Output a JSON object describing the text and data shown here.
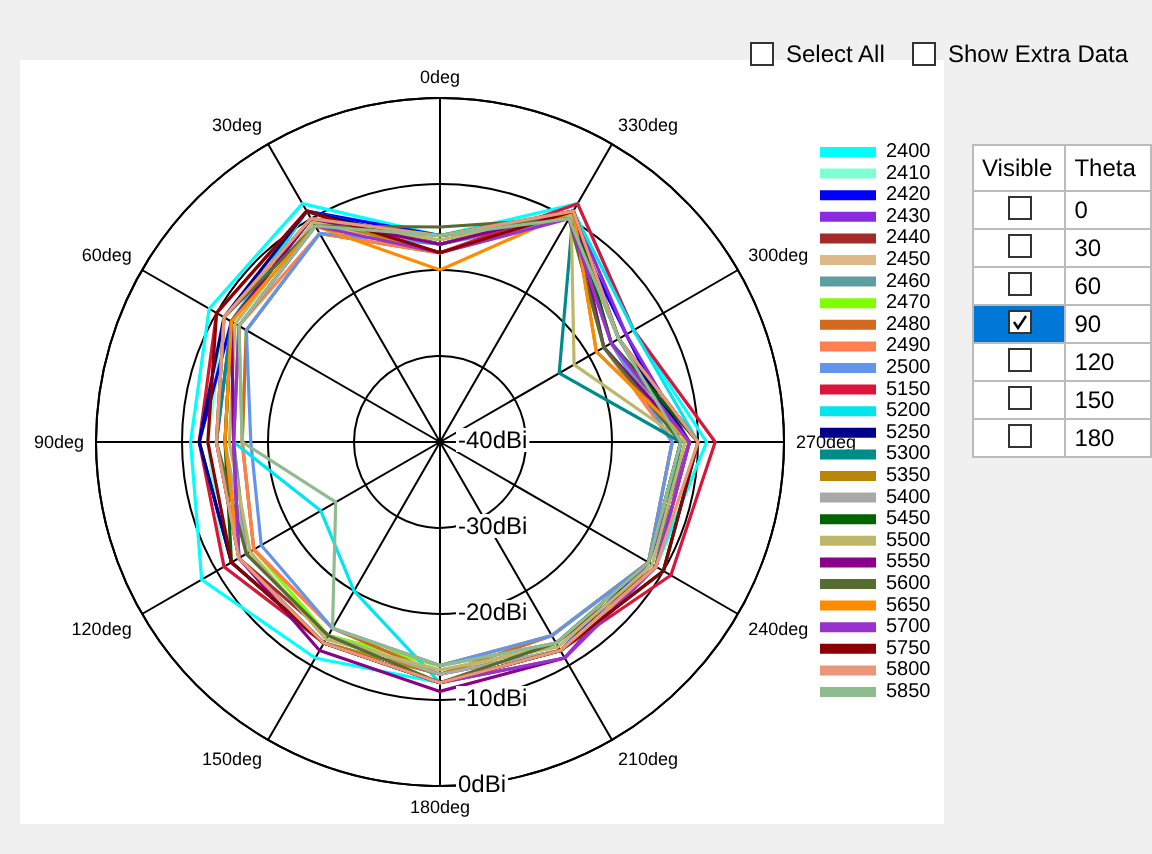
{
  "chart_data": {
    "type": "radar",
    "categories": [
      "0deg",
      "330deg",
      "300deg",
      "270deg",
      "240deg",
      "210deg",
      "180deg",
      "150deg",
      "120deg",
      "90deg",
      "60deg",
      "30deg"
    ],
    "ylim": [
      -40,
      0
    ],
    "yticks": [
      {
        "value": -40,
        "label": "-40dBi"
      },
      {
        "value": -30,
        "label": "-30dBi"
      },
      {
        "value": -20,
        "label": "-20dBi"
      },
      {
        "value": -10,
        "label": "-10dBi"
      },
      {
        "value": 0,
        "label": "0dBi"
      }
    ],
    "grid": true,
    "legend": "right",
    "annotations": [
      "Select All",
      "Show Extra Data",
      "Visible",
      "Theta",
      "0",
      "30",
      "60",
      "90",
      "120",
      "150",
      "180"
    ],
    "series": [
      {
        "name": "2400",
        "color": "#00ffff",
        "values": [
          -16,
          -8,
          -14,
          -9,
          -11,
          -12,
          -12,
          -11,
          -8,
          -11,
          -9,
          -8
        ]
      },
      {
        "name": "2410",
        "color": "#7fffd4",
        "values": [
          -17,
          -9,
          -16,
          -11,
          -11,
          -13,
          -13,
          -13,
          -11,
          -13,
          -11,
          -9
        ]
      },
      {
        "name": "2420",
        "color": "#0000ff",
        "values": [
          -16,
          -10,
          -15,
          -12,
          -12,
          -12,
          -12,
          -13,
          -12,
          -12,
          -12,
          -9
        ]
      },
      {
        "name": "2430",
        "color": "#8a2be2",
        "values": [
          -17,
          -9,
          -15,
          -11,
          -12,
          -11,
          -12,
          -13,
          -13,
          -14,
          -12,
          -10
        ]
      },
      {
        "name": "2440",
        "color": "#a52a2a",
        "values": [
          -16,
          -10,
          -16,
          -12,
          -11,
          -13,
          -13,
          -14,
          -13,
          -15,
          -12,
          -10
        ]
      },
      {
        "name": "2450",
        "color": "#deb887",
        "values": [
          -17,
          -9,
          -16,
          -12,
          -12,
          -13,
          -13,
          -14,
          -14,
          -16,
          -13,
          -11
        ]
      },
      {
        "name": "2460",
        "color": "#5f9ea0",
        "values": [
          -16,
          -10,
          -17,
          -12,
          -12,
          -13,
          -14,
          -14,
          -14,
          -16,
          -13,
          -11
        ]
      },
      {
        "name": "2470",
        "color": "#7fff00",
        "values": [
          -18,
          -9,
          -17,
          -13,
          -12,
          -14,
          -14,
          -14,
          -15,
          -17,
          -14,
          -12
        ]
      },
      {
        "name": "2480",
        "color": "#d2691e",
        "values": [
          -18,
          -9,
          -17,
          -13,
          -12,
          -14,
          -13,
          -15,
          -15,
          -17,
          -14,
          -12
        ]
      },
      {
        "name": "2490",
        "color": "#ff7f50",
        "values": [
          -18,
          -10,
          -18,
          -13,
          -12,
          -14,
          -14,
          -15,
          -15,
          -17,
          -13,
          -12
        ]
      },
      {
        "name": "2500",
        "color": "#6495ed",
        "values": [
          -17,
          -10,
          -17,
          -13,
          -12,
          -14,
          -14,
          -15,
          -16,
          -18,
          -14,
          -12
        ]
      },
      {
        "name": "5150",
        "color": "#dc143c",
        "values": [
          -18,
          -8,
          -14,
          -8,
          -9,
          -12,
          -12,
          -13,
          -11,
          -12,
          -10,
          -9
        ]
      },
      {
        "name": "5200",
        "color": "#00e5ee",
        "values": [
          -17,
          -9,
          -14,
          -10,
          -10,
          -12,
          -12,
          -20,
          -24,
          -16,
          -12,
          -9
        ]
      },
      {
        "name": "5250",
        "color": "#00008b",
        "values": [
          -17,
          -9,
          -16,
          -11,
          -11,
          -12,
          -12,
          -13,
          -12,
          -12,
          -11,
          -9
        ]
      },
      {
        "name": "5300",
        "color": "#008b8b",
        "values": [
          -17,
          -9,
          -24,
          -12,
          -11,
          -12,
          -13,
          -13,
          -13,
          -14,
          -12,
          -10
        ]
      },
      {
        "name": "5350",
        "color": "#b8860b",
        "values": [
          -18,
          -9,
          -19,
          -11,
          -11,
          -12,
          -13,
          -13,
          -13,
          -14,
          -11,
          -10
        ]
      },
      {
        "name": "5400",
        "color": "#a9a9a9",
        "values": [
          -17,
          -9,
          -18,
          -11,
          -11,
          -12,
          -13,
          -14,
          -14,
          -15,
          -12,
          -10
        ]
      },
      {
        "name": "5450",
        "color": "#006400",
        "values": [
          -16,
          -9,
          -17,
          -10,
          -10,
          -12,
          -12,
          -13,
          -12,
          -15,
          -12,
          -10
        ]
      },
      {
        "name": "5500",
        "color": "#bdb76b",
        "values": [
          -16.5,
          -9.5,
          -22,
          -11.5,
          -11.5,
          -12.5,
          -13.5,
          -13.5,
          -14.5,
          -15.5,
          -12.5,
          -10.5
        ]
      },
      {
        "name": "5550",
        "color": "#8b008b",
        "values": [
          -17,
          -9,
          -18,
          -11,
          -11,
          -11,
          -11,
          -12,
          -13,
          -16,
          -12,
          -10
        ]
      },
      {
        "name": "5600",
        "color": "#556b2f",
        "values": [
          -15,
          -10,
          -18,
          -12,
          -12,
          -13,
          -12,
          -14,
          -14,
          -14,
          -11,
          -11
        ]
      },
      {
        "name": "5650",
        "color": "#ff8c00",
        "values": [
          -20,
          -9,
          -19,
          -11,
          -11,
          -12,
          -12,
          -13,
          -13,
          -15,
          -12,
          -11
        ]
      },
      {
        "name": "5700",
        "color": "#9932cc",
        "values": [
          -18,
          -10,
          -17,
          -11,
          -11,
          -11,
          -12,
          -13,
          -13,
          -16,
          -13,
          -11
        ]
      },
      {
        "name": "5750",
        "color": "#8b0000",
        "values": [
          -18,
          -9,
          -16,
          -10,
          -10,
          -12,
          -12,
          -13,
          -12,
          -13,
          -10,
          -9
        ]
      },
      {
        "name": "5800",
        "color": "#e9967a",
        "values": [
          -16,
          -9,
          -16,
          -10,
          -11,
          -12,
          -12,
          -13,
          -13,
          -14,
          -11,
          -10
        ]
      },
      {
        "name": "5850",
        "color": "#8fbc8f",
        "values": [
          -16,
          -10,
          -16,
          -12,
          -12,
          -13,
          -14,
          -15,
          -26,
          -17,
          -13,
          -11
        ]
      }
    ]
  }
}
